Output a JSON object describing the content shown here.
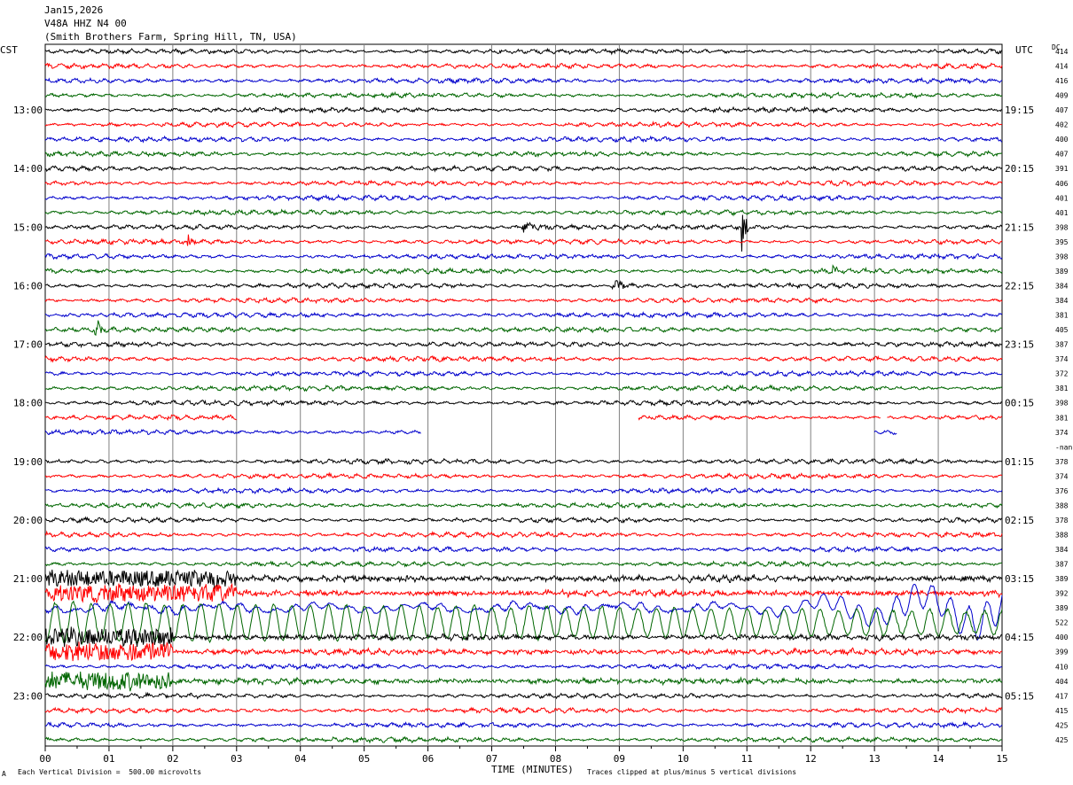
{
  "header": {
    "date": "Jan15,2026",
    "station": "V48A HHZ N4 00",
    "location": "(Smith Brothers Farm, Spring Hill, TN, USA)"
  },
  "left_timezone": "CST",
  "right_timezone": "UTC",
  "dc_label": "DC",
  "footer": {
    "scale_mark": "A",
    "vertical_division": "Each Vertical Division =  500.00 microvolts",
    "clip_note": "Traces clipped at plus/minus 5 vertical divisions"
  },
  "colors": {
    "cycle": [
      "#000000",
      "#ff0000",
      "#0000cc",
      "#006600"
    ],
    "grid": "#808080",
    "frame": "#000000"
  },
  "chart_data": {
    "type": "line",
    "title": "V48A HHZ N4 00",
    "xlabel": "TIME (MINUTES)",
    "xlim": [
      0,
      15
    ],
    "x_ticks": [
      "00",
      "01",
      "02",
      "03",
      "04",
      "05",
      "06",
      "07",
      "08",
      "09",
      "10",
      "11",
      "12",
      "13",
      "14",
      "15"
    ],
    "rows_per_hour": 4,
    "left_hour_labels": [
      "13:00",
      "14:00",
      "15:00",
      "16:00",
      "17:00",
      "18:00",
      "19:00",
      "20:00",
      "21:00",
      "22:00",
      "23:00"
    ],
    "right_hour_labels": [
      "19:15",
      "20:15",
      "21:15",
      "22:15",
      "23:15",
      "00:15",
      "01:15",
      "02:15",
      "03:15",
      "04:15",
      "05:15"
    ],
    "dc_offsets": [
      "414",
      "414",
      "416",
      "409",
      "407",
      "402",
      "400",
      "407",
      "391",
      "406",
      "401",
      "401",
      "398",
      "395",
      "398",
      "389",
      "384",
      "384",
      "381",
      "405",
      "387",
      "374",
      "372",
      "381",
      "398",
      "381",
      "374",
      "-nan",
      "378",
      "374",
      "376",
      "388",
      "378",
      "388",
      "384",
      "387",
      "389",
      "392",
      "389",
      "522",
      "400",
      "399",
      "410",
      "404",
      "417",
      "415",
      "425",
      "425"
    ],
    "gaps": [
      {
        "row": 25,
        "segments": [
          [
            0,
            3.0
          ],
          [
            9.3,
            13.1
          ],
          [
            13.2,
            15
          ]
        ]
      },
      {
        "row": 26,
        "segments": [
          [
            0,
            5.9
          ],
          [
            13.0,
            13.35
          ]
        ]
      },
      {
        "row": 27,
        "segments": []
      }
    ],
    "events": [
      {
        "row": 12,
        "minute": 7.5,
        "amplitude": 0.5,
        "duration": 0.6
      },
      {
        "row": 12,
        "minute": 10.93,
        "amplitude": 3.0,
        "duration": 0.1
      },
      {
        "row": 13,
        "minute": 2.25,
        "amplitude": 1.0,
        "duration": 0.12
      },
      {
        "row": 15,
        "minute": 12.35,
        "amplitude": 0.6,
        "duration": 0.1
      },
      {
        "row": 16,
        "minute": 8.9,
        "amplitude": 0.6,
        "duration": 0.6
      },
      {
        "row": 19,
        "minute": 0.8,
        "amplitude": 2.5,
        "duration": 0.1
      }
    ],
    "teleseism": {
      "start_row": 36,
      "onset_minute": 0,
      "peak_amplitude": 5,
      "rows_affected": [
        36,
        37,
        38,
        39,
        40,
        41,
        43
      ]
    }
  }
}
